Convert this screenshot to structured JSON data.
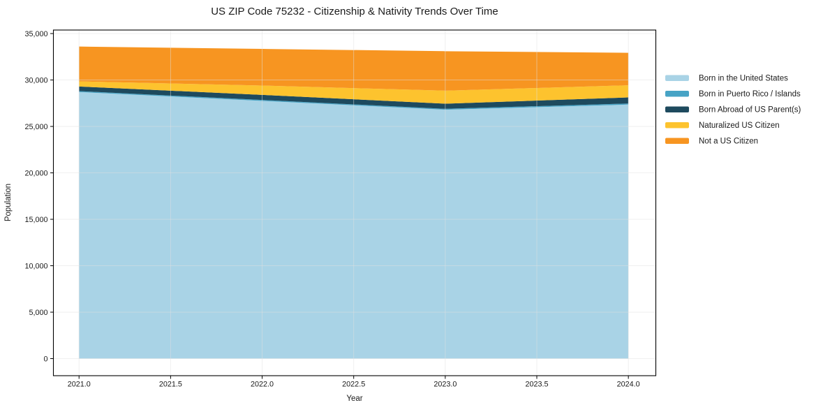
{
  "chart_data": {
    "type": "area",
    "stacked": true,
    "title": "US ZIP Code 75232 - Citizenship & Nativity Trends Over Time",
    "xlabel": "Year",
    "ylabel": "Population",
    "x": [
      2021,
      2022,
      2023,
      2024
    ],
    "series": [
      {
        "name": "Born in the United States",
        "color": "#a9d3e6",
        "values": [
          28700,
          27750,
          26800,
          27350
        ]
      },
      {
        "name": "Born in Puerto Rico / Islands",
        "color": "#47a3c5",
        "values": [
          100,
          100,
          100,
          120
        ]
      },
      {
        "name": "Born Abroad of US Parent(s)",
        "color": "#1e4a5e",
        "values": [
          500,
          550,
          550,
          650
        ]
      },
      {
        "name": "Naturalized US Citizen",
        "color": "#fdc32e",
        "values": [
          550,
          1000,
          1400,
          1310
        ]
      },
      {
        "name": "Not a US Citizen",
        "color": "#f79521",
        "values": [
          3750,
          3950,
          4250,
          3500
        ]
      }
    ],
    "totals_by_year": [
      33600,
      33350,
      33100,
      32930
    ],
    "x_ticks": [
      2021.0,
      2021.5,
      2022.0,
      2022.5,
      2023.0,
      2023.5,
      2024.0
    ],
    "x_tick_labels": [
      "2021.0",
      "2021.5",
      "2022.0",
      "2022.5",
      "2023.0",
      "2023.5",
      "2024.0"
    ],
    "y_ticks": [
      0,
      5000,
      10000,
      15000,
      20000,
      25000,
      30000,
      35000
    ],
    "y_tick_labels": [
      "0",
      "5,000",
      "10,000",
      "15,000",
      "20,000",
      "25,000",
      "30,000",
      "35,000"
    ],
    "xlim": [
      2020.86,
      2024.15
    ],
    "ylim": [
      -1840,
      35380
    ],
    "grid": true,
    "legend_position": "right-outside",
    "colors": {
      "background": "#ffffff",
      "grid": "#e0e0e0",
      "frame": "#000000",
      "text": "#1a1a1a"
    }
  }
}
